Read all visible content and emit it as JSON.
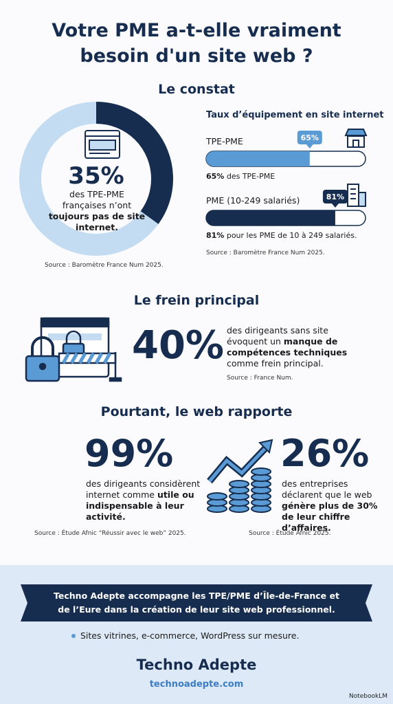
{
  "header": {
    "title_line1": "Votre PME a-t-elle vraiment",
    "title_line2": "besoin d'un site web ?"
  },
  "constat": {
    "heading": "Le constat",
    "donut": {
      "value": 35,
      "value_label": "35%",
      "text": "des TPE-PME françaises n’ont",
      "text_bold": "toujours pas de site internet."
    },
    "source": "Source : Baromètre France Num 2025.",
    "bars_title": "Taux d’équipement en site internet",
    "bars": [
      {
        "label": "TPE-PME",
        "value": 65,
        "value_label": "65%",
        "caption_bold": "65%",
        "caption": " des TPE-PME",
        "color": "#5b9bd5"
      },
      {
        "label": "PME (10-249 salariés)",
        "value": 81,
        "value_label": "81%",
        "caption_bold": "81%",
        "caption": " pour les PME de 10 à 249 salariés.",
        "color": "#162d4f"
      }
    ],
    "bars_source": "Source : Baromètre France Num 2025."
  },
  "frein": {
    "heading": "Le frein principal",
    "big": "40%",
    "text": "des dirigeants sans site évoquent un ",
    "text_bold": "manque de compétences techniques",
    "text_after": " comme frein principal.",
    "source": "Source : France Num."
  },
  "rapporte": {
    "heading": "Pourtant, le web rapporte",
    "left": {
      "big": "99%",
      "text": "des dirigeants considèrent internet comme ",
      "text_bold": "utile ou indispensable à leur activité.",
      "source": "Source : Étude Afnic “Réussir avec le web” 2025."
    },
    "right": {
      "big": "26%",
      "text": "des entreprises déclarent que le web ",
      "text_bold": "génère plus de 30% de leur chiffre d’affaires.",
      "source": "Source : Étude Afnic 2025."
    }
  },
  "footer": {
    "banner_line1": "Techno Adepte accompagne les TPE/PME d’Île-de-France et",
    "banner_line2": "de l’Eure dans la création de leur site web professionnel.",
    "bullet": "Sites vitrines, e-commerce, WordPress sur mesure.",
    "brand": "Techno Adepte",
    "url": "technoadepte.com",
    "watermark": "NotebookLM"
  }
}
